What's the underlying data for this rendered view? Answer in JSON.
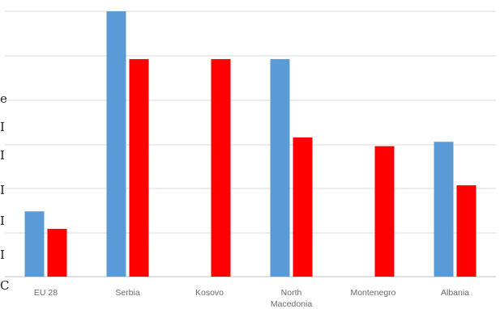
{
  "chart_data": {
    "type": "bar",
    "categories": [
      "EU 28",
      "Serbia",
      "Kosovo",
      "North Macedonia",
      "Montenegro",
      "Albania"
    ],
    "category_lines": [
      [
        "EU 28"
      ],
      [
        "Serbia"
      ],
      [
        "Kosovo"
      ],
      [
        "North",
        "Macedonia"
      ],
      [
        "Montenegro"
      ],
      [
        "Albania"
      ]
    ],
    "series": [
      {
        "color": "#5b9bd5",
        "values": [
          15,
          61,
          null,
          50,
          null,
          31
        ]
      },
      {
        "color": "#ff0000",
        "values": [
          11,
          50,
          50,
          32,
          30,
          21
        ]
      }
    ],
    "ylim": [
      0,
      61
    ],
    "grid": true,
    "legend": "none"
  }
}
